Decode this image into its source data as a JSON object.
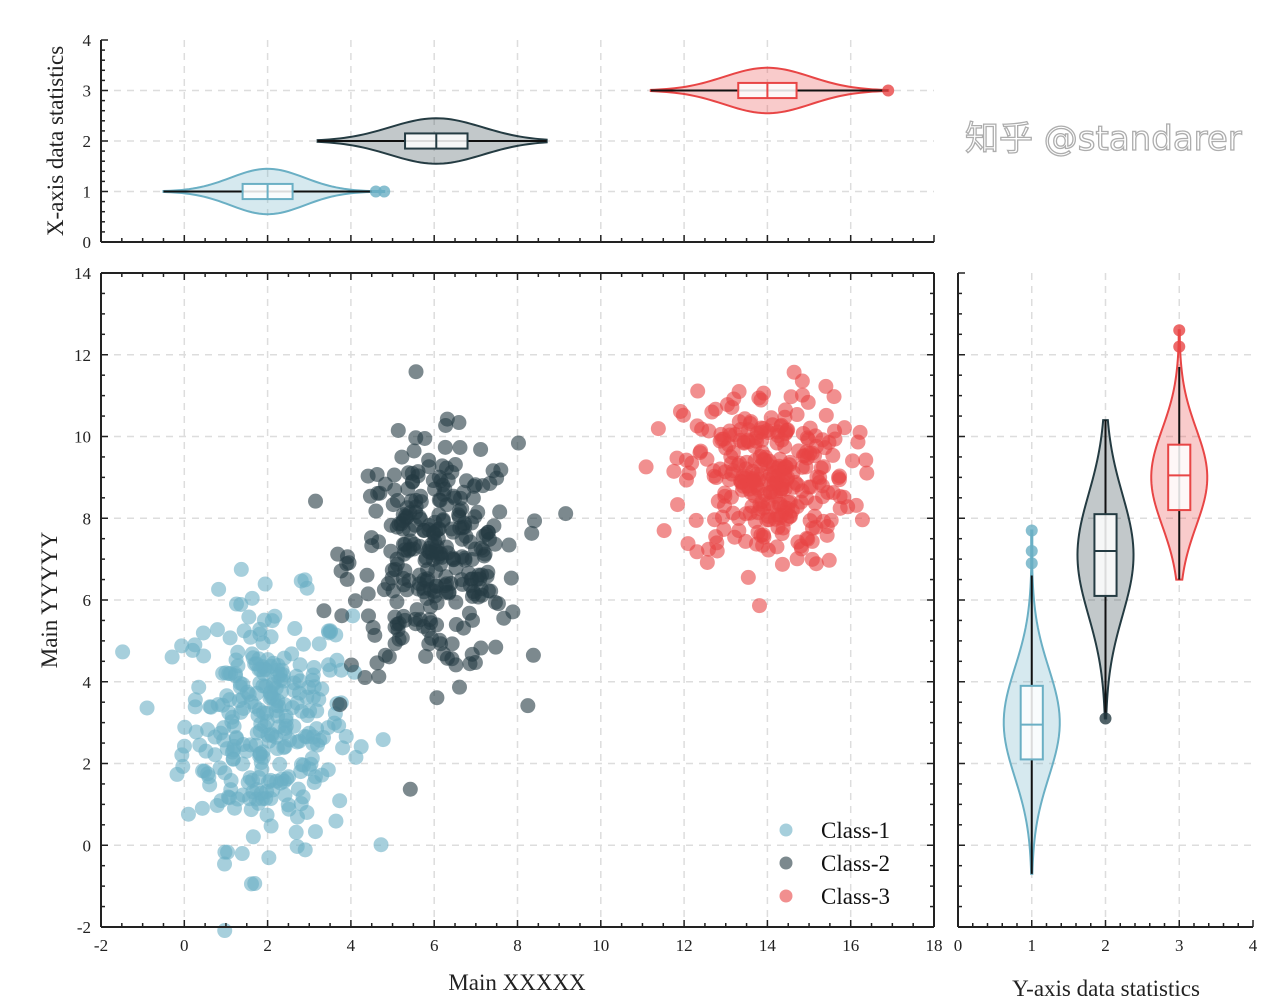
{
  "chart_data": [
    {
      "type": "scatter",
      "title": "",
      "xlabel": "Main XXXXX",
      "ylabel": "Main YYYYY",
      "xlim": [
        -2,
        18
      ],
      "ylim": [
        -2,
        14
      ],
      "xticks": [
        -2,
        0,
        2,
        4,
        6,
        8,
        10,
        12,
        14,
        16,
        18
      ],
      "yticks": [
        -2,
        0,
        2,
        4,
        6,
        8,
        10,
        12,
        14
      ],
      "grid": true,
      "legend": "bottom-right",
      "series": [
        {
          "name": "Class-1",
          "color": "#6aafc4",
          "n": 300,
          "x_mean": 2,
          "y_mean": 3,
          "x_std": 1.0,
          "y_std": 1.5
        },
        {
          "name": "Class-2",
          "color": "#243b42",
          "n": 300,
          "x_mean": 6,
          "y_mean": 7,
          "x_std": 1.0,
          "y_std": 1.4
        },
        {
          "name": "Class-3",
          "color": "#e84545",
          "n": 300,
          "x_mean": 14,
          "y_mean": 9,
          "x_std": 1.0,
          "y_std": 1.1
        }
      ]
    },
    {
      "type": "violin",
      "orientation": "horizontal",
      "ylabel": "X-axis data statistics",
      "xlim": [
        -2,
        18
      ],
      "ylim": [
        0,
        4
      ],
      "yticks": [
        0,
        1,
        2,
        3,
        4
      ],
      "grid": true,
      "groups": [
        {
          "position": 1,
          "color": "#6aafc4",
          "min": -0.5,
          "q1": 1.4,
          "median": 2,
          "q3": 2.6,
          "max": 4.5,
          "outliers": [
            4.6,
            4.8
          ]
        },
        {
          "position": 2,
          "color": "#243b42",
          "min": 3.2,
          "q1": 5.3,
          "median": 6.05,
          "q3": 6.8,
          "max": 8.7,
          "outliers": []
        },
        {
          "position": 3,
          "color": "#e84545",
          "min": 11.2,
          "q1": 13.3,
          "median": 14,
          "q3": 14.7,
          "max": 16.9,
          "outliers": [
            16.9
          ]
        }
      ]
    },
    {
      "type": "violin",
      "orientation": "vertical",
      "xlabel": "Y-axis data statistics",
      "xlim": [
        0,
        4
      ],
      "ylim": [
        -2,
        14
      ],
      "xticks": [
        0,
        1,
        2,
        3,
        4
      ],
      "grid": true,
      "groups": [
        {
          "position": 1,
          "color": "#6aafc4",
          "min": -0.7,
          "q1": 2.1,
          "median": 2.95,
          "q3": 3.9,
          "max": 6.6,
          "outliers": [
            6.9,
            7.2,
            7.7
          ]
        },
        {
          "position": 2,
          "color": "#243b42",
          "min": 3.1,
          "q1": 6.1,
          "median": 7.2,
          "q3": 8.1,
          "max": 10.4,
          "outliers": [
            3.1
          ]
        },
        {
          "position": 3,
          "color": "#e84545",
          "min": 6.5,
          "q1": 8.2,
          "median": 9.05,
          "q3": 9.8,
          "max": 11.7,
          "outliers": [
            12.2,
            12.6
          ]
        }
      ]
    }
  ],
  "watermark": "知乎 @standarer"
}
